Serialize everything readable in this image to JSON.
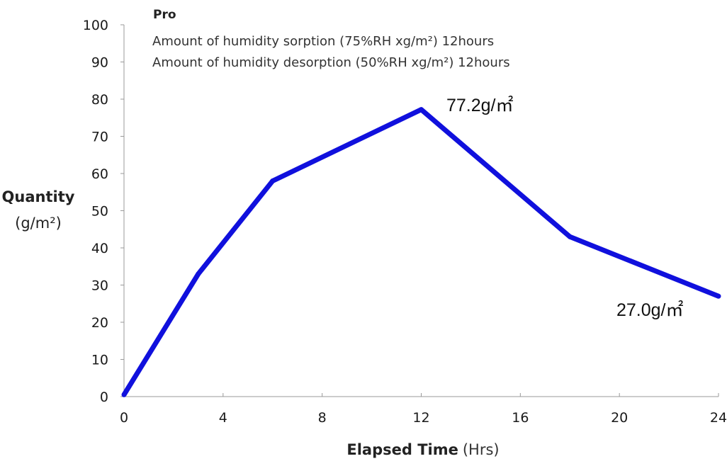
{
  "chart_data": {
    "type": "line",
    "title": "",
    "legend_title": "Pro",
    "legend_lines": [
      "Amount of humidity sorption (75%RH xg/m²) 12hours",
      "Amount of humidity desorption (50%RH xg/m²) 12hours"
    ],
    "xlabel": "Elapsed Time",
    "xlabel_unit": "(Hrs)",
    "ylabel_line1": "Quantity",
    "ylabel_line2": "(g/m²)",
    "xlim": [
      0,
      24
    ],
    "ylim": [
      0,
      100
    ],
    "x_ticks": [
      "0",
      "4",
      "8",
      "12",
      "16",
      "20",
      "24"
    ],
    "y_ticks": [
      "0",
      "10",
      "20",
      "30",
      "40",
      "50",
      "60",
      "70",
      "80",
      "90",
      "100"
    ],
    "series": [
      {
        "name": "Pro",
        "color": "#1010dd",
        "x": [
          0,
          3,
          6,
          12,
          18,
          24
        ],
        "y": [
          0.5,
          33,
          58,
          77.2,
          43,
          27
        ]
      }
    ],
    "annotations": [
      {
        "text": "77.2g/㎡",
        "x": 12,
        "y": 77.2
      },
      {
        "text": "27.0g/㎡",
        "x": 24,
        "y": 27.0
      }
    ],
    "grid": false
  }
}
